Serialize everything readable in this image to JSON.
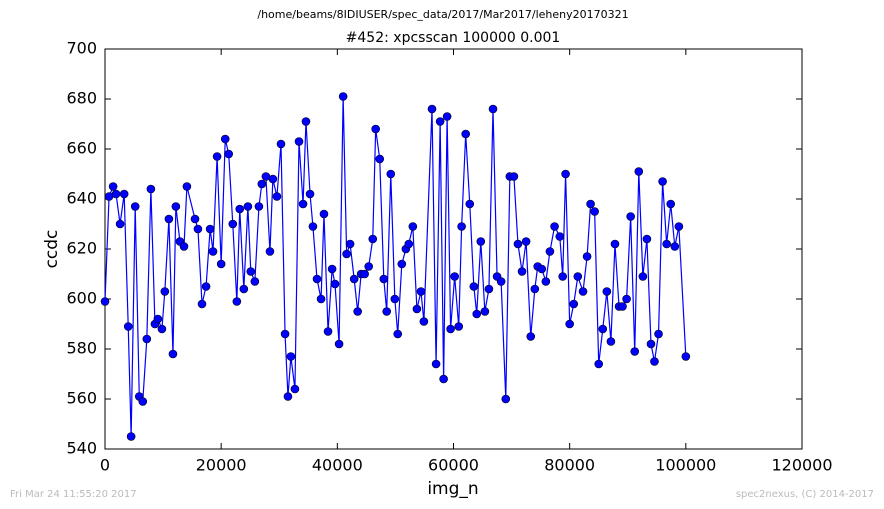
{
  "chart_data": {
    "type": "line",
    "suptitle": "/home/beams/8IDIUSER/spec_data/2017/Mar2017/leheny20170321",
    "title": "#452: xpcsscan 100000 0.001",
    "x_label": "img_n",
    "y_label": "ccdc",
    "footer_left": "Fri Mar 24 11:55:20 2017",
    "footer_right": "spec2nexus, (C) 2014-2017",
    "xlim": [
      0,
      120000
    ],
    "xticks": [
      0,
      20000,
      40000,
      60000,
      80000,
      100000,
      120000
    ],
    "ylim": [
      540,
      700
    ],
    "yticks": [
      540,
      560,
      580,
      600,
      620,
      640,
      660,
      680,
      700
    ],
    "grid": false,
    "x": [
      0,
      700,
      1400,
      1900,
      2600,
      3300,
      4000,
      4500,
      5200,
      5900,
      6500,
      7200,
      7900,
      8600,
      9100,
      9800,
      10300,
      11000,
      11700,
      12200,
      12900,
      13600,
      14100,
      15500,
      16000,
      16700,
      17400,
      18100,
      18600,
      19300,
      20000,
      20700,
      21300,
      22000,
      22700,
      23200,
      23900,
      24600,
      25100,
      25800,
      26500,
      27000,
      27700,
      28400,
      28900,
      29600,
      30300,
      31000,
      31500,
      32000,
      32700,
      33400,
      34100,
      34600,
      35300,
      35800,
      36500,
      37200,
      37700,
      38400,
      39100,
      39600,
      40300,
      41000,
      41600,
      42200,
      42900,
      43500,
      44100,
      44700,
      45400,
      46100,
      46600,
      47300,
      48000,
      48500,
      49200,
      49900,
      50400,
      51100,
      51800,
      52300,
      53000,
      53700,
      54400,
      54900,
      56300,
      57000,
      57700,
      58300,
      58900,
      59500,
      60200,
      60900,
      61400,
      62100,
      62800,
      63500,
      64000,
      64700,
      65400,
      66100,
      66800,
      67500,
      68200,
      69000,
      69700,
      70400,
      71100,
      71800,
      72500,
      73300,
      74000,
      74500,
      75200,
      75900,
      76600,
      77400,
      78300,
      78800,
      79300,
      80000,
      80700,
      81400,
      82300,
      83000,
      83600,
      84300,
      85000,
      85700,
      86400,
      87100,
      87800,
      88500,
      89100,
      89800,
      90500,
      91200,
      91900,
      92600,
      93300,
      94000,
      94600,
      95300,
      96000,
      96700,
      97400,
      98100,
      98800,
      100000
    ],
    "series": [
      {
        "color": "#0000ff",
        "values": [
          599,
          641,
          645,
          642,
          630,
          642,
          589,
          545,
          637,
          561,
          559,
          584,
          644,
          590,
          592,
          588,
          603,
          632,
          578,
          637,
          623,
          621,
          645,
          632,
          628,
          598,
          605,
          628,
          619,
          657,
          614,
          664,
          658,
          630,
          599,
          636,
          604,
          637,
          611,
          607,
          637,
          646,
          649,
          619,
          648,
          641,
          662,
          586,
          561,
          577,
          564,
          663,
          638,
          671,
          642,
          629,
          608,
          600,
          634,
          587,
          612,
          606,
          582,
          681,
          618,
          622,
          608,
          595,
          610,
          610,
          613,
          624,
          668,
          656,
          608,
          595,
          650,
          600,
          586,
          614,
          620,
          622,
          629,
          596,
          603,
          591,
          676,
          574,
          671,
          568,
          673,
          588,
          609,
          589,
          629,
          666,
          638,
          605,
          594,
          623,
          595,
          604,
          676,
          609,
          607,
          560,
          649,
          649,
          622,
          611,
          623,
          585,
          604,
          613,
          612,
          607,
          619,
          629,
          625,
          609,
          650,
          590,
          598,
          609,
          603,
          617,
          638,
          635,
          574,
          588,
          603,
          583,
          622,
          597,
          597,
          600,
          633,
          579,
          651,
          609,
          624,
          582,
          575,
          586,
          647,
          622,
          638,
          621,
          629,
          577
        ]
      }
    ]
  }
}
